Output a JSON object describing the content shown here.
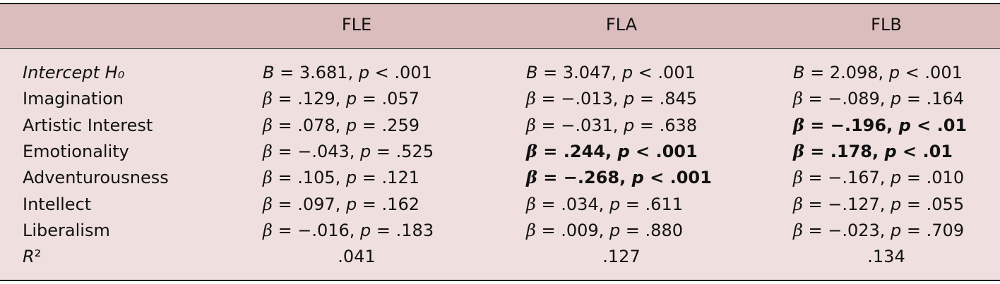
{
  "table": {
    "columns": [
      "FLE",
      "FLA",
      "FLB"
    ],
    "rows": [
      {
        "label": "Intercept H₀",
        "italic": true,
        "cells": [
          "B = 3.681, p < .001",
          "B = 3.047, p < .001",
          "B = 2.098, p < .001"
        ],
        "bold": [
          false,
          false,
          false
        ]
      },
      {
        "label": "Imagination",
        "italic": false,
        "cells": [
          "β = .129, p = .057",
          "β = −.013, p = .845",
          "β = −.089, p = .164"
        ],
        "bold": [
          false,
          false,
          false
        ]
      },
      {
        "label": "Artistic Interest",
        "italic": false,
        "cells": [
          "β = .078, p = .259",
          "β = −.031, p = .638",
          "β = −.196, p < .01"
        ],
        "bold": [
          false,
          false,
          true
        ]
      },
      {
        "label": "Emotionality",
        "italic": false,
        "cells": [
          "β = −.043, p = .525",
          "β = .244, p < .001",
          "β = .178, p < .01"
        ],
        "bold": [
          false,
          true,
          true
        ]
      },
      {
        "label": "Adventurousness",
        "italic": false,
        "cells": [
          "β = .105, p = .121",
          "β = −.268, p < .001",
          "β = −.167, p = .010"
        ],
        "bold": [
          false,
          true,
          false
        ]
      },
      {
        "label": "Intellect",
        "italic": false,
        "cells": [
          "β = .097, p = .162",
          "β = .034, p = .611",
          "β = −.127, p = .055"
        ],
        "bold": [
          false,
          false,
          false
        ]
      },
      {
        "label": "Liberalism",
        "italic": false,
        "cells": [
          "β = −.016, p = .183",
          "β = .009, p = .880",
          "β = −.023, p = .709"
        ],
        "bold": [
          false,
          false,
          false
        ]
      }
    ],
    "r2_label": "R²",
    "r2": [
      ".041",
      ".127",
      ".134"
    ]
  }
}
